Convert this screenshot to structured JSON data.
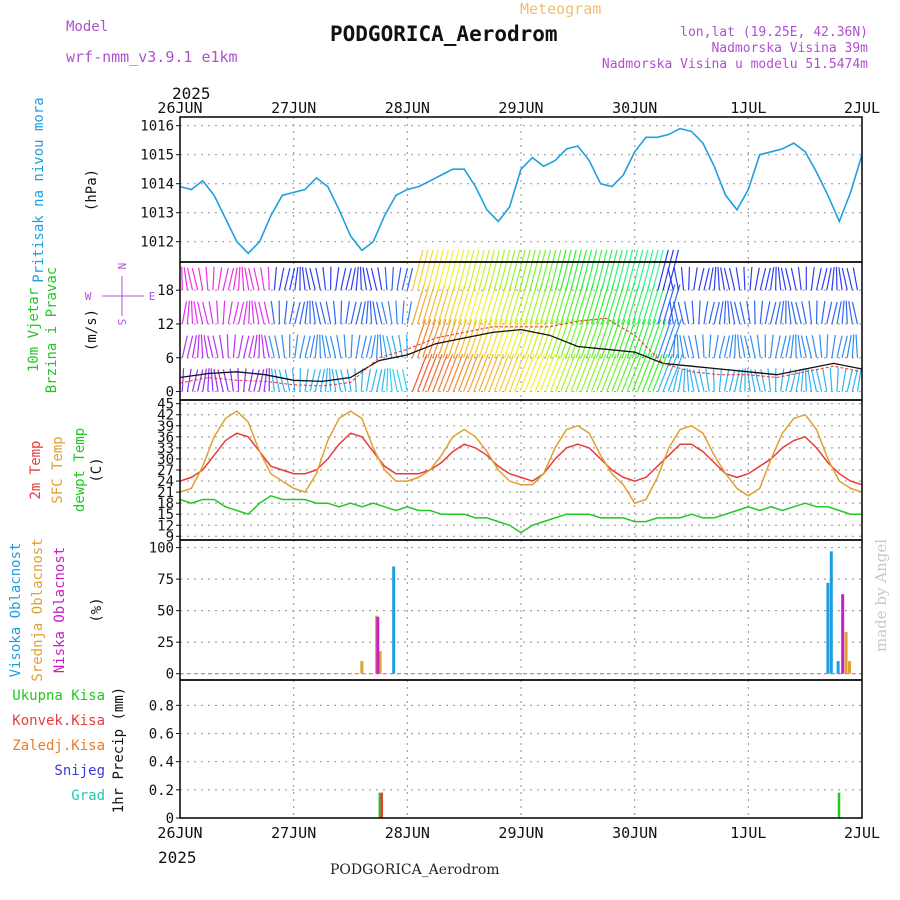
{
  "header": {
    "model_label": "Model",
    "model_name": "wrf-nmm_v3.9.1 e1km",
    "product": "Meteogram",
    "station": "PODGORICA_Aerodrom",
    "lonlat": "lon,lat (19.25E, 42.36N)",
    "elevation": "Nadmorska Visina 39m",
    "model_elevation": "Nadmorska Visina u modelu 51.5474m",
    "watermark": "made by Angel",
    "footer_station": "PODGORICA_Aerodrom",
    "year": "2025"
  },
  "colors": {
    "pressure": "#1ea0e0",
    "temp2m": "#e83c3c",
    "sfc": "#e0a030",
    "dew": "#22c822",
    "cloud_high": "#1e9ee0",
    "cloud_mid": "#e0a030",
    "cloud_low": "#c81ec8",
    "grid": "#a0a0a0"
  },
  "chart_data": [
    {
      "type": "line",
      "panel": "pressure",
      "ylabel_lines": [
        "Pritisak na nivou mora",
        "(hPa)"
      ],
      "x_ticks": [
        "26JUN",
        "27JUN",
        "28JUN",
        "29JUN",
        "30JUN",
        "1JUL",
        "2JUL"
      ],
      "y_ticks": [
        1012,
        1013,
        1014,
        1015,
        1016
      ],
      "ylim": [
        1011.3,
        1016.3
      ],
      "xlim_days": [
        0,
        6
      ],
      "series": [
        {
          "name": "pressure",
          "x": [
            0.0,
            0.1,
            0.2,
            0.3,
            0.4,
            0.5,
            0.6,
            0.7,
            0.8,
            0.9,
            1.0,
            1.1,
            1.2,
            1.3,
            1.4,
            1.5,
            1.6,
            1.7,
            1.8,
            1.9,
            2.0,
            2.1,
            2.2,
            2.3,
            2.4,
            2.5,
            2.6,
            2.7,
            2.8,
            2.9,
            3.0,
            3.1,
            3.2,
            3.3,
            3.4,
            3.5,
            3.6,
            3.7,
            3.8,
            3.9,
            4.0,
            4.1,
            4.2,
            4.3,
            4.4,
            4.5,
            4.6,
            4.7,
            4.8,
            4.9,
            5.0,
            5.1,
            5.2,
            5.3,
            5.4,
            5.5,
            5.6,
            5.7,
            5.8,
            5.9,
            6.0
          ],
          "y": [
            1013.9,
            1013.8,
            1014.1,
            1013.6,
            1012.8,
            1012.0,
            1011.6,
            1012.0,
            1012.9,
            1013.6,
            1013.7,
            1013.8,
            1014.2,
            1013.9,
            1013.1,
            1012.2,
            1011.7,
            1012.0,
            1012.9,
            1013.6,
            1013.8,
            1013.9,
            1014.1,
            1014.3,
            1014.5,
            1014.5,
            1013.9,
            1013.1,
            1012.7,
            1013.2,
            1014.5,
            1014.9,
            1014.6,
            1014.8,
            1015.2,
            1015.3,
            1014.8,
            1014.0,
            1013.9,
            1014.3,
            1015.1,
            1015.6,
            1015.6,
            1015.7,
            1015.9,
            1015.8,
            1015.4,
            1014.6,
            1013.6,
            1013.1,
            1013.8,
            1015.0,
            1015.1,
            1015.2,
            1015.4,
            1015.1,
            1014.4,
            1013.6,
            1012.7,
            1013.7,
            1015.0
          ]
        }
      ]
    },
    {
      "type": "scatter",
      "panel": "wind",
      "ylabel_lines": [
        "10m Vjetar",
        "Brzina i Pravac",
        "(m/s)"
      ],
      "compass": {
        "n": "N",
        "s": "S",
        "e": "E",
        "w": "W"
      },
      "y_ticks": [
        0,
        6,
        12,
        18
      ],
      "ylim": [
        -1.5,
        23
      ],
      "xlim_days": [
        0,
        6
      ],
      "series": [
        {
          "name": "wind_speed",
          "x": [
            0.0,
            0.25,
            0.5,
            0.75,
            1.0,
            1.25,
            1.5,
            1.75,
            2.0,
            2.25,
            2.5,
            2.75,
            3.0,
            3.25,
            3.5,
            3.75,
            4.0,
            4.25,
            4.5,
            4.75,
            5.0,
            5.25,
            5.5,
            5.75,
            6.0
          ],
          "y": [
            2.5,
            3.2,
            3.5,
            3.0,
            2.0,
            1.8,
            2.5,
            5.5,
            6.5,
            8.5,
            9.5,
            10.5,
            11.0,
            10.0,
            8.0,
            7.5,
            7.0,
            5.0,
            4.5,
            4.0,
            3.5,
            3.0,
            4.0,
            5.0,
            4.0
          ]
        },
        {
          "name": "wind_gust",
          "x": [
            0.0,
            0.25,
            0.5,
            0.75,
            1.0,
            1.25,
            1.5,
            1.75,
            2.0,
            2.25,
            2.5,
            2.75,
            3.0,
            3.25,
            3.5,
            3.75,
            4.0,
            4.25,
            4.5,
            4.75,
            5.0,
            5.25,
            5.5,
            5.75,
            6.0
          ],
          "y": [
            1.5,
            2.5,
            2.0,
            1.8,
            1.2,
            1.0,
            1.6,
            6.0,
            7.5,
            9.5,
            10.5,
            11.5,
            11.5,
            11.5,
            12.5,
            13.0,
            10.0,
            5.0,
            3.5,
            3.0,
            3.0,
            2.5,
            3.5,
            4.5,
            3.5
          ]
        }
      ]
    },
    {
      "type": "line",
      "panel": "temperature",
      "ylabel_lines": [
        "2m Temp",
        "SFC Temp",
        "dewpt Temp",
        "(C)"
      ],
      "y_ticks": [
        9,
        12,
        15,
        18,
        21,
        24,
        27,
        30,
        33,
        36,
        39,
        42,
        45
      ],
      "ylim": [
        8,
        46
      ],
      "xlim_days": [
        0,
        6
      ],
      "series": [
        {
          "name": "2m Temp",
          "x": [
            0.0,
            0.1,
            0.2,
            0.3,
            0.4,
            0.5,
            0.6,
            0.7,
            0.8,
            0.9,
            1.0,
            1.1,
            1.2,
            1.3,
            1.4,
            1.5,
            1.6,
            1.7,
            1.8,
            1.9,
            2.0,
            2.1,
            2.2,
            2.3,
            2.4,
            2.5,
            2.6,
            2.7,
            2.8,
            2.9,
            3.0,
            3.1,
            3.2,
            3.3,
            3.4,
            3.5,
            3.6,
            3.7,
            3.8,
            3.9,
            4.0,
            4.1,
            4.2,
            4.3,
            4.4,
            4.5,
            4.6,
            4.7,
            4.8,
            4.9,
            5.0,
            5.1,
            5.2,
            5.3,
            5.4,
            5.5,
            5.6,
            5.7,
            5.8,
            5.9,
            6.0
          ],
          "y": [
            24,
            25,
            27,
            31,
            35,
            37,
            36,
            32,
            28,
            27,
            26,
            26,
            27,
            30,
            34,
            37,
            36,
            32,
            28,
            26,
            26,
            26,
            27,
            29,
            32,
            34,
            33,
            31,
            28,
            26,
            25,
            24,
            26,
            30,
            33,
            34,
            33,
            30,
            27,
            25,
            24,
            25,
            28,
            31,
            34,
            34,
            32,
            29,
            26,
            25,
            26,
            28,
            30,
            33,
            35,
            36,
            33,
            29,
            26,
            24,
            23
          ]
        },
        {
          "name": "SFC Temp",
          "x": [
            0.0,
            0.1,
            0.2,
            0.3,
            0.4,
            0.5,
            0.6,
            0.7,
            0.8,
            0.9,
            1.0,
            1.1,
            1.2,
            1.3,
            1.4,
            1.5,
            1.6,
            1.7,
            1.8,
            1.9,
            2.0,
            2.1,
            2.2,
            2.3,
            2.4,
            2.5,
            2.6,
            2.7,
            2.8,
            2.9,
            3.0,
            3.1,
            3.2,
            3.3,
            3.4,
            3.5,
            3.6,
            3.7,
            3.8,
            3.9,
            4.0,
            4.1,
            4.2,
            4.3,
            4.4,
            4.5,
            4.6,
            4.7,
            4.8,
            4.9,
            5.0,
            5.1,
            5.2,
            5.3,
            5.4,
            5.5,
            5.6,
            5.7,
            5.8,
            5.9,
            6.0
          ],
          "y": [
            21,
            22,
            28,
            36,
            41,
            43,
            40,
            32,
            26,
            24,
            22,
            21,
            26,
            35,
            41,
            43,
            41,
            33,
            27,
            24,
            24,
            25,
            27,
            31,
            36,
            38,
            36,
            32,
            27,
            24,
            23,
            23,
            26,
            33,
            38,
            39,
            37,
            31,
            26,
            23,
            18,
            19,
            25,
            33,
            38,
            39,
            37,
            31,
            26,
            22,
            20,
            22,
            30,
            37,
            41,
            42,
            38,
            30,
            24,
            22,
            21
          ]
        },
        {
          "name": "dewpt Temp",
          "x": [
            0.0,
            0.1,
            0.2,
            0.3,
            0.4,
            0.5,
            0.6,
            0.7,
            0.8,
            0.9,
            1.0,
            1.1,
            1.2,
            1.3,
            1.4,
            1.5,
            1.6,
            1.7,
            1.8,
            1.9,
            2.0,
            2.1,
            2.2,
            2.3,
            2.4,
            2.5,
            2.6,
            2.7,
            2.8,
            2.9,
            3.0,
            3.1,
            3.2,
            3.3,
            3.4,
            3.5,
            3.6,
            3.7,
            3.8,
            3.9,
            4.0,
            4.1,
            4.2,
            4.3,
            4.4,
            4.5,
            4.6,
            4.7,
            4.8,
            4.9,
            5.0,
            5.1,
            5.2,
            5.3,
            5.4,
            5.5,
            5.6,
            5.7,
            5.8,
            5.9,
            6.0
          ],
          "y": [
            19,
            18,
            19,
            19,
            17,
            16,
            15,
            18,
            20,
            19,
            19,
            19,
            18,
            18,
            17,
            18,
            17,
            18,
            17,
            16,
            17,
            16,
            16,
            15,
            15,
            15,
            14,
            14,
            13,
            12,
            10,
            12,
            13,
            14,
            15,
            15,
            15,
            14,
            14,
            14,
            13,
            13,
            14,
            14,
            14,
            15,
            14,
            14,
            15,
            16,
            17,
            16,
            17,
            16,
            17,
            18,
            17,
            17,
            16,
            15,
            15
          ]
        }
      ]
    },
    {
      "type": "bar",
      "panel": "cloud",
      "ylabel_lines": [
        "Visoka Oblacnost",
        "Srednja Oblacnost",
        "Niska Oblacnost",
        "(%)"
      ],
      "y_ticks": [
        0,
        25,
        50,
        75,
        100
      ],
      "ylim": [
        -5,
        106
      ],
      "xlim_days": [
        0,
        6
      ],
      "series": [
        {
          "name": "Visoka Oblacnost",
          "x": [
            1.76,
            1.88,
            5.7,
            5.73,
            5.79
          ],
          "values": [
            8,
            85,
            72,
            97,
            10
          ]
        },
        {
          "name": "Srednja Oblacnost",
          "x": [
            1.6,
            1.73,
            1.76,
            5.86,
            5.89
          ],
          "values": [
            10,
            46,
            18,
            33,
            10
          ]
        },
        {
          "name": "Niska Oblacnost",
          "x": [
            1.74,
            5.83
          ],
          "values": [
            45,
            63
          ]
        }
      ]
    },
    {
      "type": "bar",
      "panel": "precip",
      "ylabel_lines": [
        "1hr Precip (mm)"
      ],
      "legend": [
        "Ukupna Kisa",
        "Konvek.Kisa",
        "Zaledj.Kisa",
        "Snijeg",
        "Grad"
      ],
      "legend_colors": [
        "#22c822",
        "#e83c3c",
        "#e87c28",
        "#3c3cd8",
        "#22c8b0"
      ],
      "y_ticks": [
        0,
        0.2,
        0.4,
        0.6,
        0.8
      ],
      "ylim": [
        0,
        0.98
      ],
      "xlim_days": [
        0,
        6
      ],
      "series": [
        {
          "name": "Ukupna Kisa",
          "x": [
            1.76,
            5.8
          ],
          "values": [
            0.18,
            0.18
          ]
        },
        {
          "name": "Konvek.Kisa",
          "x": [
            1.76
          ],
          "values": [
            0.18
          ]
        }
      ]
    }
  ]
}
